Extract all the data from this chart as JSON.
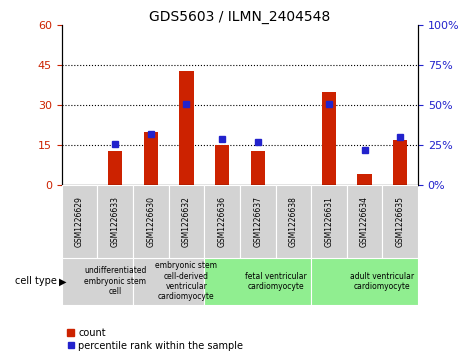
{
  "title": "GDS5603 / ILMN_2404548",
  "samples": [
    "GSM1226629",
    "GSM1226633",
    "GSM1226630",
    "GSM1226632",
    "GSM1226636",
    "GSM1226637",
    "GSM1226638",
    "GSM1226631",
    "GSM1226634",
    "GSM1226635"
  ],
  "counts": [
    0,
    13,
    20,
    43,
    15,
    13,
    0,
    35,
    4,
    17
  ],
  "percentiles": [
    null,
    26,
    32,
    51,
    29,
    27,
    null,
    51,
    22,
    30
  ],
  "ylim_left": [
    0,
    60
  ],
  "ylim_right": [
    0,
    100
  ],
  "yticks_left": [
    0,
    15,
    30,
    45,
    60
  ],
  "yticks_right": [
    0,
    25,
    50,
    75,
    100
  ],
  "cell_type_groups": [
    {
      "label": "undifferentiated\nembryonic stem\ncell",
      "start": 0,
      "end": 2,
      "color": "#d3d3d3"
    },
    {
      "label": "embryonic stem\ncell-derived\nventricular\ncardiomyocyte",
      "start": 2,
      "end": 4,
      "color": "#d3d3d3"
    },
    {
      "label": "fetal ventricular\ncardiomyocyte",
      "start": 4,
      "end": 7,
      "color": "#90ee90"
    },
    {
      "label": "adult ventricular\ncardiomyocyte",
      "start": 7,
      "end": 10,
      "color": "#90ee90"
    }
  ],
  "bar_color": "#cc2200",
  "dot_color": "#2222cc",
  "bar_width": 0.4,
  "grid_color": "#000000",
  "tick_label_color_left": "#cc2200",
  "tick_label_color_right": "#2222cc",
  "sample_box_color": "#d3d3d3",
  "legend_count_label": "count",
  "legend_pct_label": "percentile rank within the sample",
  "cell_type_label": "cell type"
}
